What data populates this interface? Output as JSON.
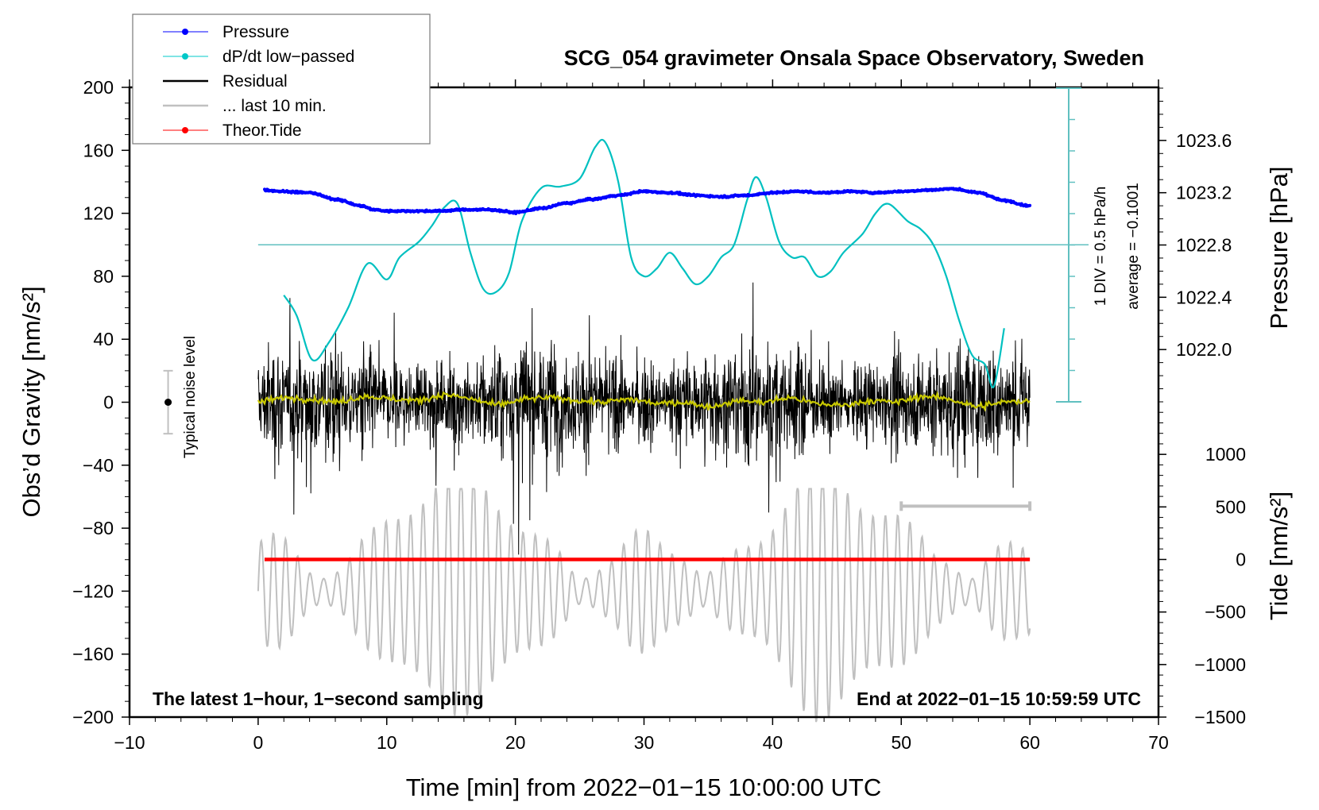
{
  "chart_data": {
    "type": "line",
    "title": "SCG_054 gravimeter Onsala Space Observatory, Sweden",
    "xlabel": "Time [min] from 2022−01−15 10:00:00 UTC",
    "ylabel_left": "Obs’d Gravity [nm/s²]",
    "ylabel_right_top": "Pressure [hPa]",
    "ylabel_right_bottom": "Tide [nm/s²]",
    "xlim": [
      -10,
      70
    ],
    "ylim": [
      -200,
      200
    ],
    "pressure_lim": [
      1021.6,
      1024.0
    ],
    "tide_lim": [
      -1500,
      1500
    ],
    "x_ticks": [
      -10,
      0,
      10,
      20,
      30,
      40,
      50,
      60,
      70
    ],
    "x_tick_labels": [
      "−10",
      "0",
      "10",
      "20",
      "30",
      "40",
      "50",
      "60",
      "70"
    ],
    "y_ticks": [
      200,
      160,
      120,
      80,
      40,
      0,
      -40,
      -80,
      -120,
      -160,
      -200
    ],
    "y_tick_labels": [
      "200",
      "160",
      "120",
      "80",
      "40",
      "0",
      "−40",
      "−80",
      "−120",
      "−160",
      "−200"
    ],
    "pressure_ticks": [
      1023.6,
      1023.2,
      1022.8,
      1022.4,
      1022.0
    ],
    "pressure_tick_labels": [
      "1023.6",
      "1023.2",
      "1022.8",
      "1022.4",
      "1022.0"
    ],
    "tide_ticks": [
      1000,
      500,
      0,
      -500,
      -1000,
      -1500
    ],
    "tide_tick_labels": [
      "1000",
      "500",
      "0",
      "−500",
      "−1000",
      "−1500"
    ],
    "legend": {
      "placement": "top-left",
      "entries": [
        {
          "label": "Pressure",
          "color": "#0000ff",
          "marker": "dot"
        },
        {
          "label": "dP/dt low−passed",
          "color": "#00c8c8",
          "marker": "dot"
        },
        {
          "label": "Residual",
          "color": "#000000",
          "marker": "none"
        },
        {
          "label": "... last 10 min.",
          "color": "#c0c0c0",
          "marker": "none"
        },
        {
          "label": "Theor.Tide",
          "color": "#ff0000",
          "marker": "dot"
        }
      ]
    },
    "series": [
      {
        "name": "Pressure",
        "color": "#0000ff",
        "axis": "pressure_hPa",
        "x": [
          0.5,
          2,
          4,
          6,
          8,
          9,
          10,
          12,
          14,
          16,
          18,
          20,
          22,
          24,
          26,
          28,
          30,
          32,
          34,
          36,
          38,
          40,
          42,
          44,
          46,
          48,
          50,
          52,
          54,
          56,
          58,
          60
        ],
        "values": [
          1023.22,
          1023.21,
          1023.2,
          1023.15,
          1023.1,
          1023.07,
          1023.06,
          1023.06,
          1023.06,
          1023.07,
          1023.07,
          1023.05,
          1023.08,
          1023.12,
          1023.15,
          1023.18,
          1023.21,
          1023.2,
          1023.18,
          1023.17,
          1023.18,
          1023.2,
          1023.21,
          1023.2,
          1023.21,
          1023.2,
          1023.21,
          1023.22,
          1023.23,
          1023.2,
          1023.14,
          1023.1
        ]
      },
      {
        "name": "dP/dt low-passed",
        "color": "#00c0c0",
        "axis": "gravity_scaled",
        "x": [
          2.0,
          3.0,
          4.2,
          5.5,
          7.0,
          8.5,
          10.0,
          11.0,
          12.5,
          13.5,
          14.5,
          15.5,
          16.5,
          17.5,
          18.5,
          19.5,
          20.5,
          22.0,
          23.5,
          25.0,
          26.2,
          27.0,
          28.0,
          29.0,
          30.0,
          31.0,
          32.0,
          33.0,
          34.0,
          35.0,
          36.0,
          37.0,
          38.0,
          38.7,
          39.5,
          40.5,
          41.5,
          42.5,
          43.5,
          44.5,
          45.5,
          47.0,
          48.0,
          49.0,
          50.5,
          51.5,
          52.5,
          53.5,
          54.5,
          55.5,
          56.5,
          57.2,
          58.0
        ],
        "values": [
          68,
          55,
          27,
          38,
          60,
          88,
          78,
          92,
          102,
          112,
          124,
          126,
          95,
          72,
          70,
          82,
          115,
          136,
          137,
          142,
          162,
          165,
          140,
          92,
          80,
          85,
          95,
          85,
          75,
          80,
          92,
          100,
          128,
          143,
          130,
          102,
          92,
          92,
          80,
          83,
          95,
          107,
          120,
          126,
          115,
          110,
          100,
          80,
          52,
          30,
          24,
          10,
          47
        ]
      },
      {
        "name": "Residual",
        "color": "#000000",
        "axis": "gravity",
        "x_range": [
          0,
          60
        ],
        "envelope_min": -100,
        "envelope_max": 100,
        "typical_amplitude": 40
      },
      {
        "name": "Residual running mean",
        "color": "#c8c800",
        "axis": "gravity",
        "x_range": [
          0,
          60
        ],
        "approx_values": [
          0,
          3,
          2,
          0,
          4,
          2,
          1,
          5,
          2,
          -2,
          2,
          3,
          1,
          0,
          2,
          -1,
          0,
          -3,
          1,
          0,
          3,
          -1,
          -2,
          1,
          0,
          4,
          2,
          -3,
          0,
          1
        ]
      },
      {
        "name": "... last 10 min.",
        "color": "#c0c0c0",
        "axis": "gravity",
        "x_range": [
          0,
          60
        ],
        "baseline": -120,
        "envelope_min": -205,
        "envelope_max": -55
      },
      {
        "name": "Theor.Tide",
        "color": "#ff0000",
        "axis": "tide",
        "x": [
          0.5,
          60
        ],
        "values": [
          0,
          0
        ]
      }
    ],
    "reference_line": {
      "name": "dP/dt zero line",
      "color": "#60c0c0",
      "gravity_value": 100
    },
    "scale_bar": {
      "label": "1 DIV = 0.5 hPa/h",
      "average_label": "average = −0.1001",
      "color": "#60c0c0"
    },
    "noise_level": {
      "label": "Typical noise level",
      "center": 0,
      "half_range": 20,
      "x": -7
    },
    "last10_bracket": {
      "x_start": 50,
      "x_end": 60,
      "gravity_value": -66
    },
    "annotations": {
      "bottom_left": "The latest 1−hour, 1−second sampling",
      "bottom_right": "End at 2022−01−15 10:59:59 UTC"
    },
    "grid": false
  }
}
